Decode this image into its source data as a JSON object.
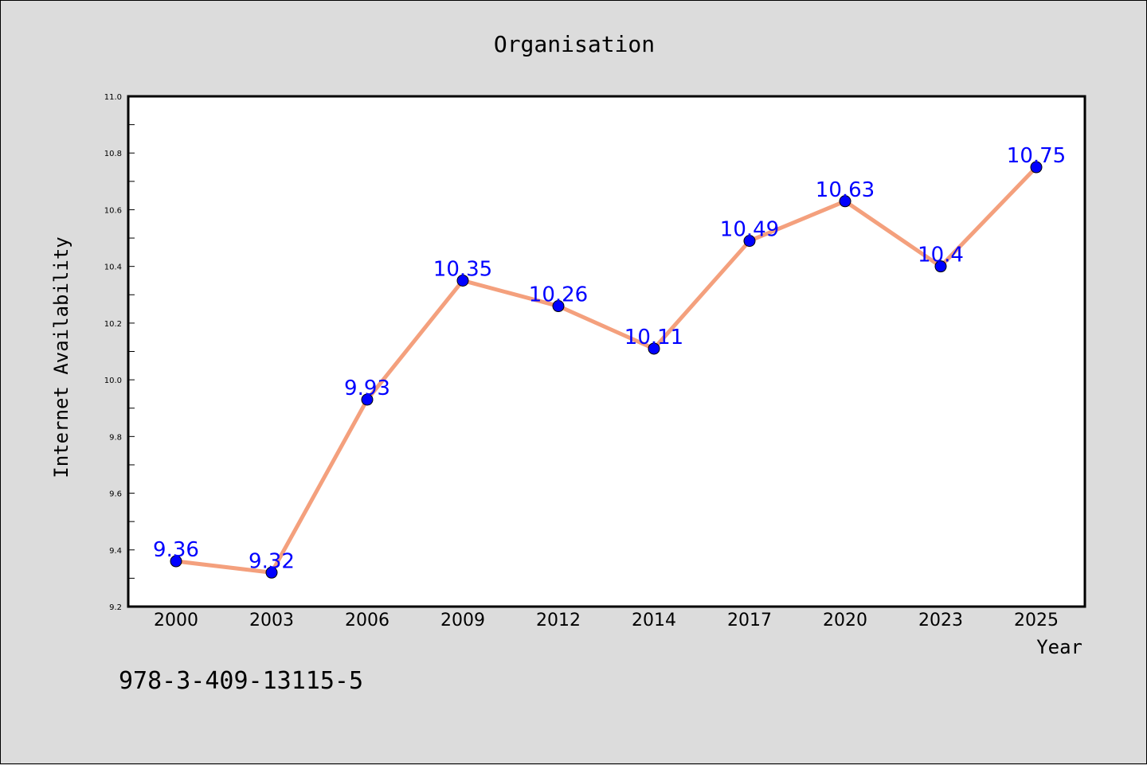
{
  "footer_text": "978-3-409-13115-5",
  "colors": {
    "background": "#dcdcdc",
    "plot_background": "#ffffff",
    "line": "#f4a07d",
    "marker": "#0000ff",
    "label": "#0000ff"
  },
  "chart_data": {
    "type": "line",
    "title": "Organisation",
    "xlabel": "Year",
    "ylabel": "Internet Availability",
    "categories": [
      "2000",
      "2003",
      "2006",
      "2009",
      "2012",
      "2014",
      "2017",
      "2020",
      "2023",
      "2025"
    ],
    "series": [
      {
        "values": [
          9.36,
          9.32,
          9.93,
          10.35,
          10.26,
          10.11,
          10.49,
          10.63,
          10.4,
          10.75
        ],
        "data_labels": [
          "9.36",
          "9.32",
          "9.93",
          "10.35",
          "10.26",
          "10.11",
          "10.49",
          "10.63",
          "10.4",
          "10.75"
        ]
      }
    ],
    "ylim": [
      9.2,
      11.0
    ],
    "yticks": [
      "9.2",
      "9.4",
      "9.6",
      "9.8",
      "10.0",
      "10.2",
      "10.4",
      "10.6",
      "10.8",
      "11.0"
    ],
    "grid": false,
    "legend": "none"
  }
}
